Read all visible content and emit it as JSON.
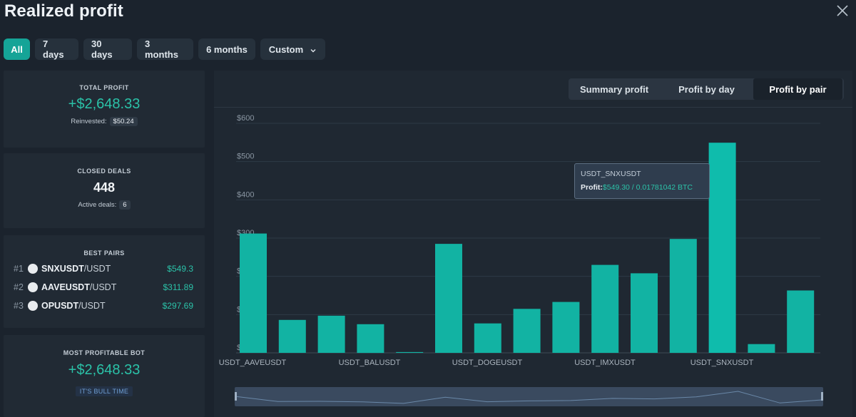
{
  "header": {
    "title": "Realized profit"
  },
  "filters": {
    "all": "All",
    "d7": "7 days",
    "d30": "30 days",
    "m3": "3 months",
    "m6": "6 months",
    "custom": "Custom"
  },
  "total_profit": {
    "label": "TOTAL PROFIT",
    "value": "+$2,648.33",
    "sub_label": "Reinvested:",
    "sub_value": "$50.24"
  },
  "closed_deals": {
    "label": "CLOSED DEALS",
    "value": "448",
    "sub_label": "Active deals:",
    "sub_value": "6"
  },
  "best_pairs": {
    "label": "BEST PAIRS",
    "items": [
      {
        "rank": "#1",
        "base": "SNXUSDT",
        "quote": "/USDT",
        "value": "$549.3"
      },
      {
        "rank": "#2",
        "base": "AAVEUSDT",
        "quote": "/USDT",
        "value": "$311.89"
      },
      {
        "rank": "#3",
        "base": "OPUSDT",
        "quote": "/USDT",
        "value": "$297.69"
      }
    ]
  },
  "most_profitable_bot": {
    "label": "MOST PROFITABLE BOT",
    "value": "+$2,648.33",
    "bot_name": "IT'S BULL TIME"
  },
  "chart_tabs": {
    "summary": "Summary profit",
    "by_day": "Profit by day",
    "by_pair": "Profit by pair",
    "active": "by_pair"
  },
  "tooltip": {
    "title": "USDT_SNXUSDT",
    "label": "Profit:",
    "value": "$549.30  / 0.01781042 BTC"
  },
  "colors": {
    "accent": "#15a497",
    "bar": "#12b3a3",
    "bar_hover": "#0fbcac",
    "positive": "#2bc2a8"
  },
  "icons": {
    "close": "close-icon",
    "custom_chevron": "chevron-down-icon"
  },
  "chart_data": {
    "type": "bar",
    "ylim": [
      0,
      600
    ],
    "y_ticks": [
      "$600",
      "$500",
      "$400",
      "$300",
      "$200",
      "$100",
      "$0"
    ],
    "x_tick_labels": [
      "USDT_AAVEUSDT",
      "USDT_BALUSDT",
      "USDT_DOGEUSDT",
      "USDT_IMXUSDT",
      "USDT_SNXUSDT"
    ],
    "values": [
      311.89,
      86,
      97,
      75,
      2,
      285,
      77,
      115,
      133,
      230,
      208,
      297.69,
      549.3,
      23,
      163
    ],
    "grid": true,
    "legend": "none"
  }
}
